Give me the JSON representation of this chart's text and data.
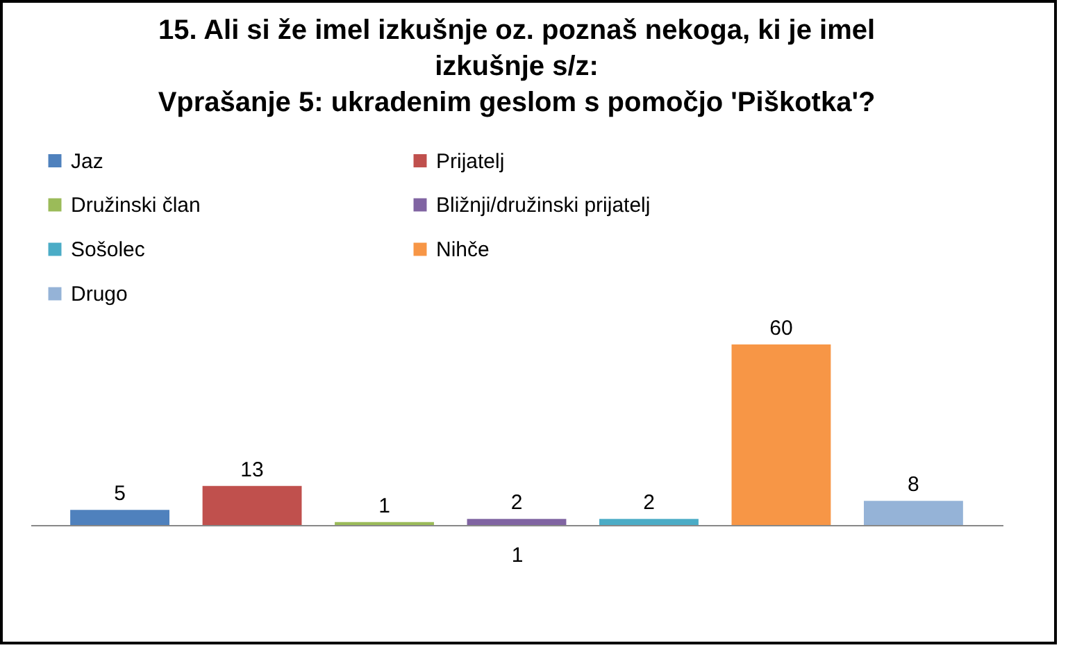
{
  "chart_data": {
    "type": "bar",
    "title": "15. Ali si že imel izkušnje oz. poznaš nekoga, ki je imel izkušnje s/z:\nVprašanje 5: ukradenim geslom s pomočjo 'Piškotka'?",
    "xlabel": "1",
    "categories": [
      null,
      null,
      null,
      null,
      null,
      null,
      null
    ],
    "stacked": true,
    "series": [
      {
        "name": "Jaz",
        "color": "#4f81bd",
        "values": [
          5,
          null,
          null,
          null,
          null,
          null,
          null
        ]
      },
      {
        "name": "Prijatelj",
        "color": "#c0504d",
        "values": [
          null,
          13,
          null,
          null,
          null,
          null,
          null
        ]
      },
      {
        "name": "Družinski član",
        "color": "#9bbb59",
        "values": [
          null,
          null,
          1,
          null,
          null,
          null,
          null
        ]
      },
      {
        "name": "Bližnji/družinski prijatelj",
        "color": "#8064a2",
        "values": [
          null,
          null,
          null,
          2,
          null,
          null,
          null
        ]
      },
      {
        "name": "Sošolec",
        "color": "#4bacc6",
        "values": [
          null,
          null,
          null,
          null,
          2,
          null,
          null
        ]
      },
      {
        "name": "Nihče",
        "color": "#f79646",
        "values": [
          null,
          null,
          null,
          null,
          null,
          60,
          null
        ]
      },
      {
        "name": "Drugo",
        "color": "#95b3d7",
        "values": [
          null,
          null,
          null,
          null,
          null,
          null,
          8
        ]
      }
    ],
    "data_labels": true,
    "legend": "top",
    "tick_labels": false
  }
}
